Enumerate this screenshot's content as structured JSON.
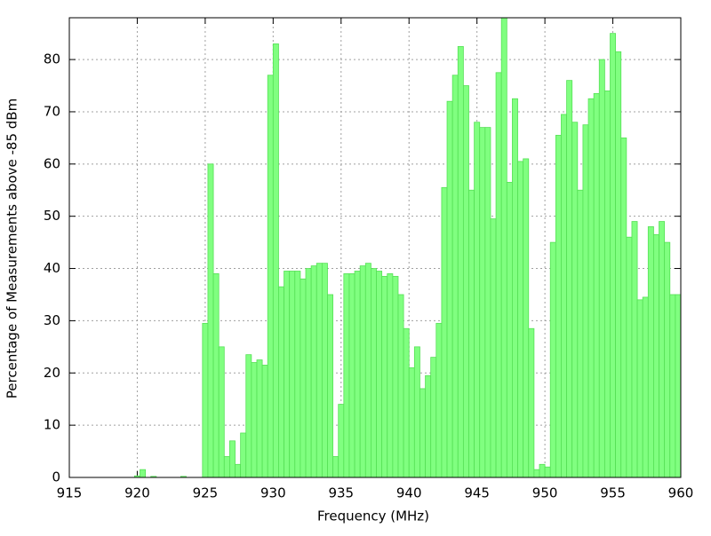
{
  "chart_data": {
    "type": "bar",
    "x_label": "Frequency (MHz)",
    "y_label": "Percentage of Measurements above -85 dBm",
    "x": [
      920.0,
      920.4,
      921.2,
      923.4,
      925.0,
      925.4,
      925.8,
      926.2,
      926.6,
      927.0,
      927.4,
      927.8,
      928.2,
      928.6,
      929.0,
      929.4,
      929.8,
      930.2,
      930.6,
      931.0,
      931.4,
      931.8,
      932.2,
      932.6,
      933.0,
      933.4,
      933.8,
      934.2,
      934.6,
      935.0,
      935.4,
      935.8,
      936.2,
      936.6,
      937.0,
      937.4,
      937.8,
      938.2,
      938.6,
      939.0,
      939.4,
      939.8,
      940.2,
      940.6,
      941.0,
      941.4,
      941.8,
      942.2,
      942.6,
      943.0,
      943.4,
      943.8,
      944.2,
      944.6,
      945.0,
      945.4,
      945.8,
      946.2,
      946.6,
      947.0,
      947.4,
      947.8,
      948.2,
      948.6,
      949.0,
      949.4,
      949.8,
      950.2,
      950.6,
      951.0,
      951.4,
      951.8,
      952.2,
      952.6,
      953.0,
      953.4,
      953.8,
      954.2,
      954.6,
      955.0,
      955.4,
      955.8,
      956.2,
      956.6,
      957.0,
      957.4,
      957.8,
      958.2,
      958.6,
      959.0,
      959.4,
      959.8
    ],
    "values": [
      0.3,
      1.5,
      0.2,
      0.2,
      29.5,
      60,
      39,
      25,
      4,
      7,
      2.5,
      8.5,
      23.5,
      22,
      22.5,
      21.5,
      77,
      83,
      36.5,
      39.5,
      39.5,
      39.5,
      38,
      40,
      40.5,
      41,
      41,
      35,
      4,
      14,
      39,
      39,
      39.5,
      40.5,
      41,
      40,
      39.5,
      38.5,
      39,
      38.5,
      35,
      28.5,
      21,
      25,
      17,
      19.5,
      23,
      29.5,
      55.5,
      72,
      77,
      82.5,
      75,
      55,
      68,
      67,
      67,
      49.5,
      77.5,
      88,
      56.5,
      72.5,
      60.5,
      61,
      28.5,
      1.5,
      2.5,
      2,
      45,
      65.5,
      69.5,
      76,
      68,
      55,
      67.5,
      72.5,
      73.5,
      80,
      74,
      85,
      81.5,
      65,
      46,
      49,
      34,
      34.5,
      48,
      46.5,
      49,
      45,
      35,
      35
    ],
    "color": "#80ff80",
    "edge_color": "#55e055",
    "xlim": [
      915,
      960
    ],
    "xticks": [
      915,
      920,
      925,
      930,
      935,
      940,
      945,
      950,
      955,
      960
    ],
    "ylim": [
      0,
      88
    ],
    "yticks": [
      0,
      10,
      20,
      30,
      40,
      50,
      60,
      70,
      80
    ],
    "grid": true
  }
}
